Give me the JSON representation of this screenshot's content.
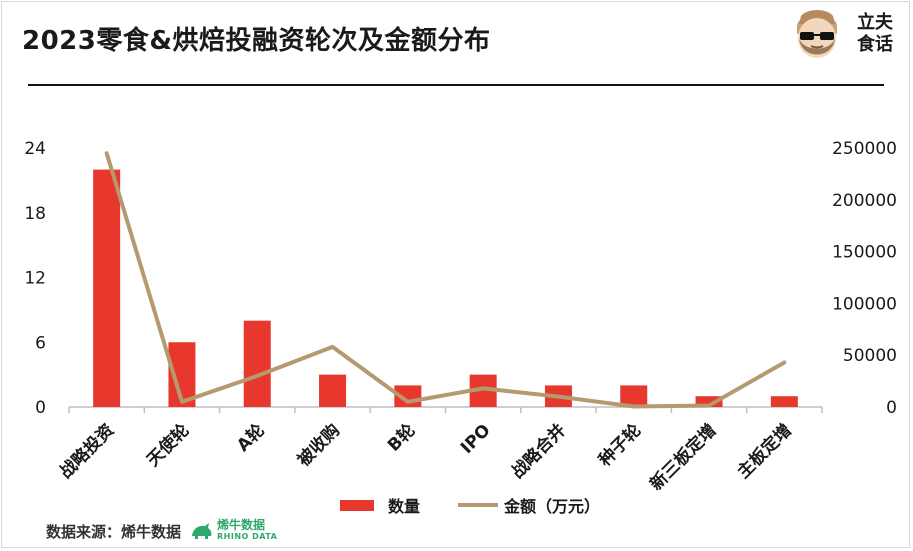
{
  "title": "2023零食&烘焙投融资轮次及金额分布",
  "brand": {
    "line1": "立夫",
    "line2": "食话",
    "icon": "bearded-face-icon"
  },
  "source": {
    "label": "数据来源：烯牛数据",
    "logo_cn": "烯牛数据",
    "logo_en": "RHINO DATA"
  },
  "legend": {
    "bar_label": "数量",
    "line_label": "金额（万元）"
  },
  "colors": {
    "bar": "#e8372c",
    "line": "#b59a6f"
  },
  "chart_data": {
    "type": "bar",
    "categories": [
      "战略投资",
      "天使轮",
      "A轮",
      "被收购",
      "B轮",
      "IPO",
      "战略合并",
      "种子轮",
      "新三板定增",
      "主板定增"
    ],
    "series": [
      {
        "name": "数量",
        "type": "bar",
        "axis": "left",
        "values": [
          22,
          6,
          8,
          3,
          2,
          3,
          2,
          2,
          1,
          1
        ]
      },
      {
        "name": "金额（万元）",
        "type": "line",
        "axis": "right",
        "values": [
          245000,
          5000,
          30000,
          58000,
          5000,
          18000,
          10000,
          500,
          1500,
          43000
        ]
      }
    ],
    "y_left": {
      "min": 0,
      "max": 24,
      "ticks": [
        0,
        6,
        12,
        18,
        24
      ]
    },
    "y_right": {
      "min": 0,
      "max": 250000,
      "ticks": [
        0,
        50000,
        100000,
        150000,
        200000,
        250000
      ]
    },
    "legend_position": "bottom",
    "grid": false
  }
}
